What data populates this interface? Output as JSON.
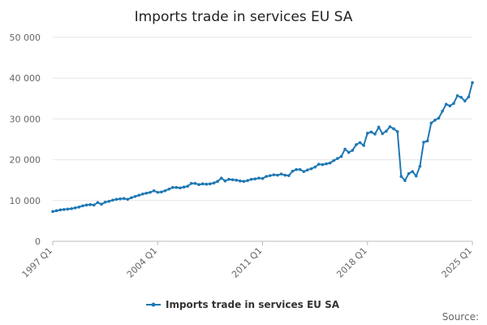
{
  "chart_data": {
    "type": "line",
    "title": "Imports trade in services EU SA",
    "xlabel": "",
    "ylabel": "",
    "ylim": [
      0,
      50000
    ],
    "yticks": [
      "0",
      "10 000",
      "20 000",
      "30 000",
      "40 000",
      "50 000"
    ],
    "ytick_values": [
      0,
      10000,
      20000,
      30000,
      40000,
      50000
    ],
    "xticks": [
      "1997 Q1",
      "2004 Q1",
      "2011 Q1",
      "2018 Q1",
      "2025 Q1"
    ],
    "grid": true,
    "legend_position": "bottom",
    "source_label": "Source:",
    "series_color": "#1f78b4",
    "series": [
      {
        "name": "Imports trade in services EU SA",
        "values": [
          7300,
          7500,
          7700,
          7800,
          7900,
          8000,
          8200,
          8400,
          8700,
          8900,
          9000,
          8900,
          9500,
          9100,
          9600,
          9800,
          10100,
          10300,
          10400,
          10500,
          10300,
          10700,
          11000,
          11300,
          11600,
          11800,
          12000,
          12400,
          12000,
          12100,
          12400,
          12800,
          13200,
          13200,
          13100,
          13300,
          13500,
          14200,
          14200,
          13900,
          14100,
          14000,
          14100,
          14300,
          14700,
          15500,
          14800,
          15200,
          15100,
          15000,
          14800,
          14700,
          14900,
          15200,
          15300,
          15500,
          15400,
          15900,
          16100,
          16300,
          16200,
          16500,
          16200,
          16100,
          17200,
          17600,
          17600,
          17100,
          17500,
          17800,
          18200,
          18900,
          18800,
          19000,
          19200,
          19800,
          20300,
          20800,
          22600,
          21800,
          22300,
          23700,
          24200,
          23500,
          26500,
          26800,
          26300,
          28000,
          26400,
          27000,
          28100,
          27600,
          26900,
          15900,
          14900,
          16600,
          17100,
          16000,
          18400,
          24300,
          24600,
          29000,
          29700,
          30200,
          31900,
          33600,
          33200,
          33800,
          35700,
          35300,
          34400,
          35400,
          38900
        ]
      }
    ]
  }
}
